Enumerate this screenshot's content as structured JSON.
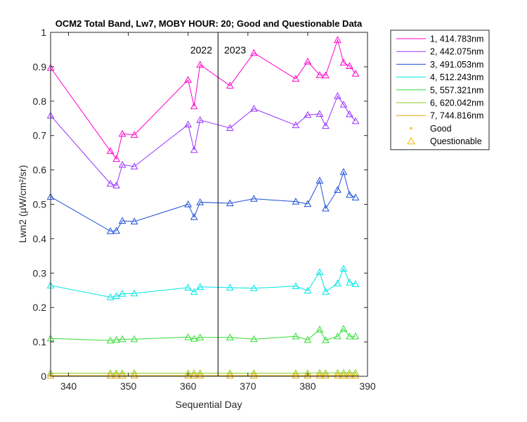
{
  "chart_data": {
    "type": "line",
    "title": "OCM2 Total Band, Lw7, MOBY HOUR: 20;  Good and Questionable Data",
    "xlabel": "Sequential Day",
    "ylabel": "Lwn2 (µW/cm²/sr)",
    "xlim": [
      337,
      390
    ],
    "ylim": [
      0,
      1
    ],
    "xticks": [
      340,
      350,
      360,
      370,
      380,
      390
    ],
    "yticks": [
      0,
      0.1,
      0.2,
      0.3,
      0.4,
      0.5,
      0.6,
      0.7,
      0.8,
      0.9,
      1
    ],
    "xticklabels": [
      "340",
      "350",
      "360",
      "370",
      "380",
      "390"
    ],
    "yticklabels": [
      "0",
      "0.1",
      "0.2",
      "0.3",
      "0.4",
      "0.5",
      "0.6",
      "0.7",
      "0.8",
      "0.9",
      "1"
    ],
    "grid": false,
    "legend_position": "outside-top-right",
    "year_divider": {
      "x": 365,
      "left_label": "2022",
      "right_label": "2023"
    },
    "x": [
      337,
      347,
      348,
      349,
      351,
      360,
      361,
      362,
      367,
      371,
      378,
      380,
      382,
      383,
      385,
      386,
      387,
      388
    ],
    "series": [
      {
        "name": "1, 414.783nm",
        "color": "#ff00cc",
        "values": [
          0.897,
          0.655,
          0.632,
          0.705,
          0.702,
          0.862,
          0.785,
          0.906,
          0.845,
          0.94,
          0.865,
          0.915,
          0.876,
          0.875,
          0.978,
          0.912,
          0.902,
          0.88
        ]
      },
      {
        "name": "2, 442.075nm",
        "color": "#9933ff",
        "values": [
          0.758,
          0.56,
          0.555,
          0.615,
          0.61,
          0.732,
          0.658,
          0.745,
          0.722,
          0.778,
          0.73,
          0.76,
          0.763,
          0.728,
          0.815,
          0.79,
          0.762,
          0.742
        ]
      },
      {
        "name": "3, 491.053nm",
        "color": "#1f4fd8",
        "values": [
          0.522,
          0.422,
          0.423,
          0.452,
          0.45,
          0.5,
          0.463,
          0.506,
          0.503,
          0.516,
          0.508,
          0.501,
          0.569,
          0.488,
          0.542,
          0.594,
          0.528,
          0.52
        ]
      },
      {
        "name": "4, 512.243nm",
        "color": "#00e6e6",
        "values": [
          0.264,
          0.23,
          0.233,
          0.24,
          0.241,
          0.258,
          0.245,
          0.26,
          0.258,
          0.256,
          0.262,
          0.249,
          0.303,
          0.246,
          0.27,
          0.313,
          0.273,
          0.268
        ]
      },
      {
        "name": "5, 557.321nm",
        "color": "#33dd33",
        "values": [
          0.11,
          0.104,
          0.106,
          0.108,
          0.108,
          0.114,
          0.109,
          0.113,
          0.113,
          0.108,
          0.116,
          0.106,
          0.136,
          0.105,
          0.116,
          0.138,
          0.116,
          0.116
        ]
      },
      {
        "name": "6, 620.042nm",
        "color": "#88cc22",
        "values": [
          0.009,
          0.009,
          0.009,
          0.009,
          0.009,
          0.009,
          0.009,
          0.009,
          0.009,
          0.009,
          0.009,
          0.009,
          0.01,
          0.009,
          0.01,
          0.01,
          0.01,
          0.01
        ]
      },
      {
        "name": "7, 744.816nm",
        "color": "#e6a800",
        "values": [
          0.002,
          0.002,
          0.002,
          0.002,
          0.002,
          0.002,
          0.002,
          0.002,
          0.002,
          0.002,
          0.002,
          0.002,
          0.002,
          0.002,
          0.002,
          0.002,
          0.002,
          0.002
        ]
      }
    ],
    "marker_legend": [
      {
        "name": "Good",
        "marker": "dot",
        "color": "#f5b800"
      },
      {
        "name": "Questionable",
        "marker": "triangle",
        "color": "#f5b800"
      }
    ]
  }
}
